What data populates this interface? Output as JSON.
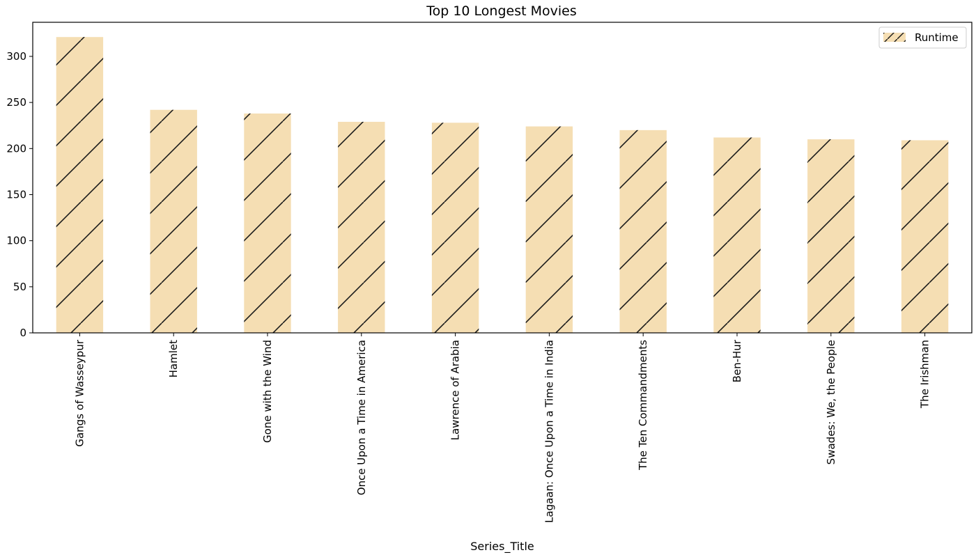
{
  "chart_data": {
    "type": "bar",
    "title": "Top 10 Longest Movies",
    "xlabel": "Series_Title",
    "ylabel": "",
    "categories": [
      "Gangs of Wasseypur",
      "Hamlet",
      "Gone with the Wind",
      "Once Upon a Time in America",
      "Lawrence of Arabia",
      "Lagaan: Once Upon a Time in India",
      "The Ten Commandments",
      "Ben-Hur",
      "Swades: We, the People",
      "The Irishman"
    ],
    "series": [
      {
        "name": "Runtime",
        "values": [
          321,
          242,
          238,
          229,
          228,
          224,
          220,
          212,
          210,
          209
        ]
      }
    ],
    "ylim": [
      0,
      337
    ],
    "yticks": [
      0,
      50,
      100,
      150,
      200,
      250,
      300
    ],
    "grid": false,
    "legend_position": "top-right",
    "bar_color": "#f5deb3",
    "hatch": "/",
    "hatch_color": "#000000"
  }
}
